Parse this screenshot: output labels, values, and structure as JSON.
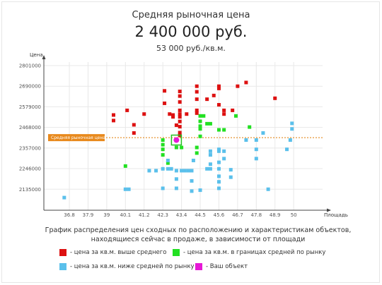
{
  "header": {
    "label": "Средняя рыночная цена",
    "price": "2 400 000 руб.",
    "price_per_sqm": "53  000 руб./кв.м."
  },
  "caption": {
    "line1": "График распределения цен сходных по расположению и характеристикам объектов,",
    "line2": "находящиеся сейчас в продаже, в зависимости от площади"
  },
  "legend": {
    "above": "- цена за кв.м. выше среднего",
    "within": "- цена за кв.м. в границах средней по рынку",
    "below": "- цена за кв.м. ниже средней по рынку",
    "own": "- Ваш объект"
  },
  "colors": {
    "above": "#dd1111",
    "within": "#22e022",
    "below": "#5bc0eb",
    "own": "#e619d6",
    "avg_line": "#e07b00",
    "avg_label_bg": "#e8891c"
  },
  "chart_data": {
    "type": "scatter",
    "xlabel": "Площадь",
    "ylabel": "Цена",
    "xlim": [
      35.3,
      51.7
    ],
    "ylim": [
      2022000,
      2820000
    ],
    "x_ticks": [
      36.8,
      37.9,
      39,
      40.1,
      41.2,
      42.3,
      43.4,
      44.5,
      45.6,
      46.7,
      47.8,
      48.9,
      50
    ],
    "y_ticks": [
      2135000,
      2246000,
      2357000,
      2468000,
      2579000,
      2690000,
      2801000
    ],
    "average_price": 2413000,
    "average_label": "Средняя рыночная цена",
    "series": [
      {
        "key": "above",
        "points": [
          [
            39.4,
            2535000
          ],
          [
            39.4,
            2505000
          ],
          [
            40.2,
            2560000
          ],
          [
            40.6,
            2438000
          ],
          [
            40.6,
            2482000
          ],
          [
            41.2,
            2540000
          ],
          [
            42.4,
            2665000
          ],
          [
            42.4,
            2598000
          ],
          [
            42.7,
            2540000
          ],
          [
            42.9,
            2525000
          ],
          [
            42.9,
            2535000
          ],
          [
            43.1,
            2480000
          ],
          [
            43.3,
            2662000
          ],
          [
            43.3,
            2637000
          ],
          [
            43.3,
            2605000
          ],
          [
            43.3,
            2560000
          ],
          [
            43.3,
            2540000
          ],
          [
            43.3,
            2525000
          ],
          [
            43.3,
            2500000
          ],
          [
            43.3,
            2472000
          ],
          [
            43.3,
            2440000
          ],
          [
            43.3,
            2425000
          ],
          [
            43.7,
            2540000
          ],
          [
            44.3,
            2690000
          ],
          [
            44.3,
            2660000
          ],
          [
            44.3,
            2620000
          ],
          [
            44.3,
            2560000
          ],
          [
            44.3,
            2545000
          ],
          [
            44.9,
            2620000
          ],
          [
            45.3,
            2640000
          ],
          [
            45.6,
            2690000
          ],
          [
            45.6,
            2678000
          ],
          [
            45.6,
            2590000
          ],
          [
            45.9,
            2560000
          ],
          [
            45.9,
            2540000
          ],
          [
            46.4,
            2560000
          ],
          [
            46.7,
            2690000
          ],
          [
            47.2,
            2710000
          ],
          [
            48.9,
            2625000
          ]
        ]
      },
      {
        "key": "within",
        "points": [
          [
            40.1,
            2260000
          ],
          [
            42.3,
            2400000
          ],
          [
            42.3,
            2375000
          ],
          [
            42.3,
            2350000
          ],
          [
            42.3,
            2320000
          ],
          [
            42.6,
            2276000
          ],
          [
            43.1,
            2360000
          ],
          [
            43.4,
            2360000
          ],
          [
            44.3,
            2360000
          ],
          [
            44.3,
            2330000
          ],
          [
            44.5,
            2530000
          ],
          [
            44.5,
            2501000
          ],
          [
            44.5,
            2475000
          ],
          [
            44.5,
            2460000
          ],
          [
            44.5,
            2420000
          ],
          [
            44.7,
            2530000
          ],
          [
            44.9,
            2488000
          ],
          [
            45.1,
            2488000
          ],
          [
            45.6,
            2455000
          ],
          [
            45.9,
            2455000
          ],
          [
            46.6,
            2530000
          ],
          [
            47.4,
            2470000
          ]
        ]
      },
      {
        "key": "below",
        "points": [
          [
            36.5,
            2090000
          ],
          [
            40.1,
            2135000
          ],
          [
            40.3,
            2135000
          ],
          [
            41.5,
            2235000
          ],
          [
            41.9,
            2235000
          ],
          [
            42.3,
            2245000
          ],
          [
            42.3,
            2140000
          ],
          [
            42.6,
            2245000
          ],
          [
            42.6,
            2290000
          ],
          [
            42.8,
            2245000
          ],
          [
            43.1,
            2235000
          ],
          [
            43.1,
            2190000
          ],
          [
            43.1,
            2140000
          ],
          [
            43.4,
            2235000
          ],
          [
            43.6,
            2235000
          ],
          [
            43.8,
            2235000
          ],
          [
            44.0,
            2235000
          ],
          [
            44.0,
            2180000
          ],
          [
            44.0,
            2125000
          ],
          [
            44.1,
            2290000
          ],
          [
            44.5,
            2130000
          ],
          [
            44.9,
            2245000
          ],
          [
            45.1,
            2340000
          ],
          [
            45.1,
            2320000
          ],
          [
            45.1,
            2270000
          ],
          [
            45.1,
            2245000
          ],
          [
            45.6,
            2350000
          ],
          [
            45.6,
            2340000
          ],
          [
            45.6,
            2280000
          ],
          [
            45.6,
            2245000
          ],
          [
            45.6,
            2205000
          ],
          [
            45.6,
            2175000
          ],
          [
            45.6,
            2140000
          ],
          [
            45.9,
            2340000
          ],
          [
            45.9,
            2300000
          ],
          [
            46.3,
            2240000
          ],
          [
            46.3,
            2200000
          ],
          [
            47.2,
            2400000
          ],
          [
            47.8,
            2400000
          ],
          [
            47.8,
            2350000
          ],
          [
            47.8,
            2300000
          ],
          [
            48.2,
            2438000
          ],
          [
            48.5,
            2135000
          ],
          [
            49.6,
            2350000
          ],
          [
            49.8,
            2400000
          ],
          [
            49.9,
            2460000
          ],
          [
            49.9,
            2490000
          ]
        ]
      }
    ],
    "own_object": {
      "x": 43.1,
      "y": 2400000
    }
  }
}
